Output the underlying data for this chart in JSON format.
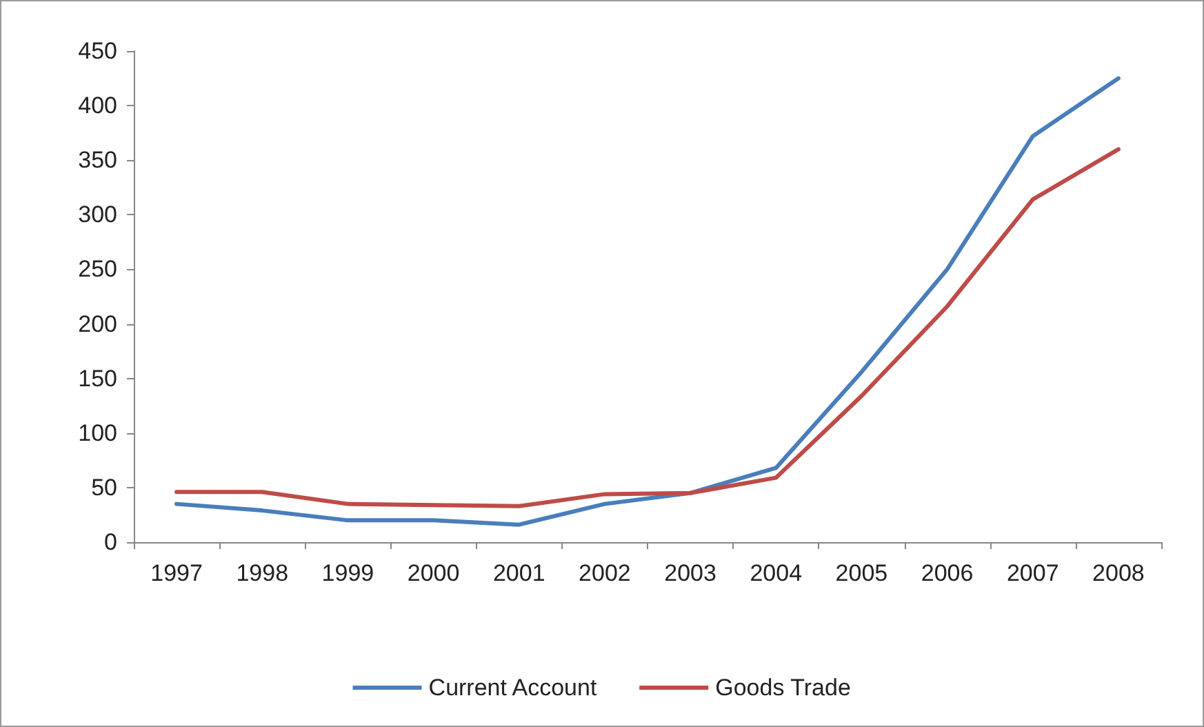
{
  "chart_data": {
    "type": "line",
    "categories": [
      "1997",
      "1998",
      "1999",
      "2000",
      "2001",
      "2002",
      "2003",
      "2004",
      "2005",
      "2006",
      "2007",
      "2008"
    ],
    "series": [
      {
        "name": "Current Account",
        "color": "#4a7ebb",
        "values": [
          35,
          29,
          20,
          20,
          16,
          35,
          45,
          68,
          156,
          250,
          372,
          425
        ]
      },
      {
        "name": "Goods Trade",
        "color": "#be4b48",
        "values": [
          46,
          46,
          35,
          34,
          33,
          44,
          45,
          59,
          134,
          216,
          314,
          360
        ]
      }
    ],
    "ylim": [
      0,
      450
    ],
    "yticks": [
      0,
      50,
      100,
      150,
      200,
      250,
      300,
      350,
      400,
      450
    ],
    "grid": false,
    "legend": "bottom",
    "marker": "none",
    "line_style": "solid"
  }
}
